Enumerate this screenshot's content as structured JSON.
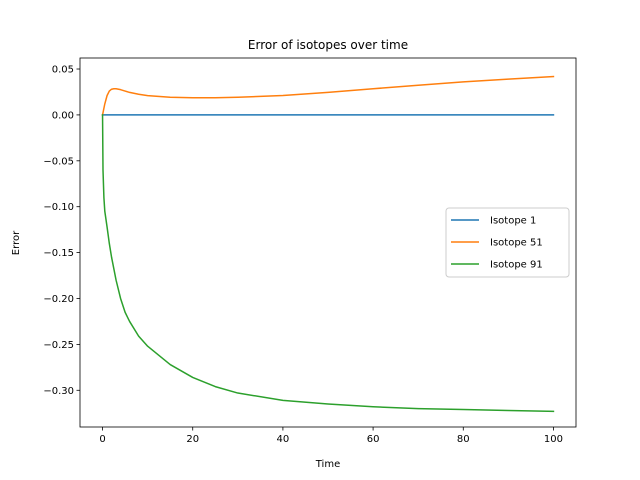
{
  "chart_data": {
    "type": "line",
    "title": "Error of isotopes over time",
    "xlabel": "Time",
    "ylabel": "Error",
    "xlim": [
      -5,
      105
    ],
    "ylim": [
      -0.34,
      0.062
    ],
    "xticks": [
      0,
      20,
      40,
      60,
      80,
      100
    ],
    "yticks": [
      0.05,
      0.0,
      -0.05,
      -0.1,
      -0.15,
      -0.2,
      -0.25,
      -0.3
    ],
    "xtick_labels": [
      "0",
      "20",
      "40",
      "60",
      "80",
      "100"
    ],
    "ytick_labels": [
      "0.05",
      "0.00",
      "−0.05",
      "−0.10",
      "−0.15",
      "−0.20",
      "−0.25",
      "−0.30"
    ],
    "grid": false,
    "legend_position": "center-right",
    "series": [
      {
        "name": "Isotope 1",
        "color": "#1f77b4",
        "x": [
          0,
          10,
          20,
          30,
          40,
          50,
          60,
          70,
          80,
          90,
          100
        ],
        "y": [
          0,
          0,
          0,
          0,
          0,
          0,
          0,
          0,
          0,
          0,
          0
        ]
      },
      {
        "name": "Isotope 51",
        "color": "#ff7f0e",
        "x": [
          0,
          0.5,
          1,
          1.5,
          2,
          2.5,
          3,
          4,
          5,
          6,
          8,
          10,
          15,
          20,
          25,
          30,
          40,
          50,
          60,
          70,
          80,
          90,
          100
        ],
        "y": [
          0,
          0.012,
          0.021,
          0.026,
          0.028,
          0.0285,
          0.0285,
          0.0275,
          0.026,
          0.0245,
          0.0225,
          0.021,
          0.0193,
          0.0187,
          0.0187,
          0.0192,
          0.0212,
          0.0245,
          0.0285,
          0.0323,
          0.036,
          0.039,
          0.0418
        ]
      },
      {
        "name": "Isotope 91",
        "color": "#2ca02c",
        "x": [
          0,
          0.1,
          0.3,
          0.5,
          1,
          1.5,
          2,
          3,
          4,
          5,
          6,
          8,
          10,
          15,
          20,
          25,
          30,
          40,
          50,
          60,
          70,
          80,
          90,
          100
        ],
        "y": [
          0,
          -0.06,
          -0.09,
          -0.105,
          -0.122,
          -0.14,
          -0.155,
          -0.18,
          -0.2,
          -0.215,
          -0.225,
          -0.241,
          -0.252,
          -0.272,
          -0.286,
          -0.296,
          -0.303,
          -0.311,
          -0.315,
          -0.318,
          -0.32,
          -0.321,
          -0.322,
          -0.323
        ]
      }
    ]
  }
}
